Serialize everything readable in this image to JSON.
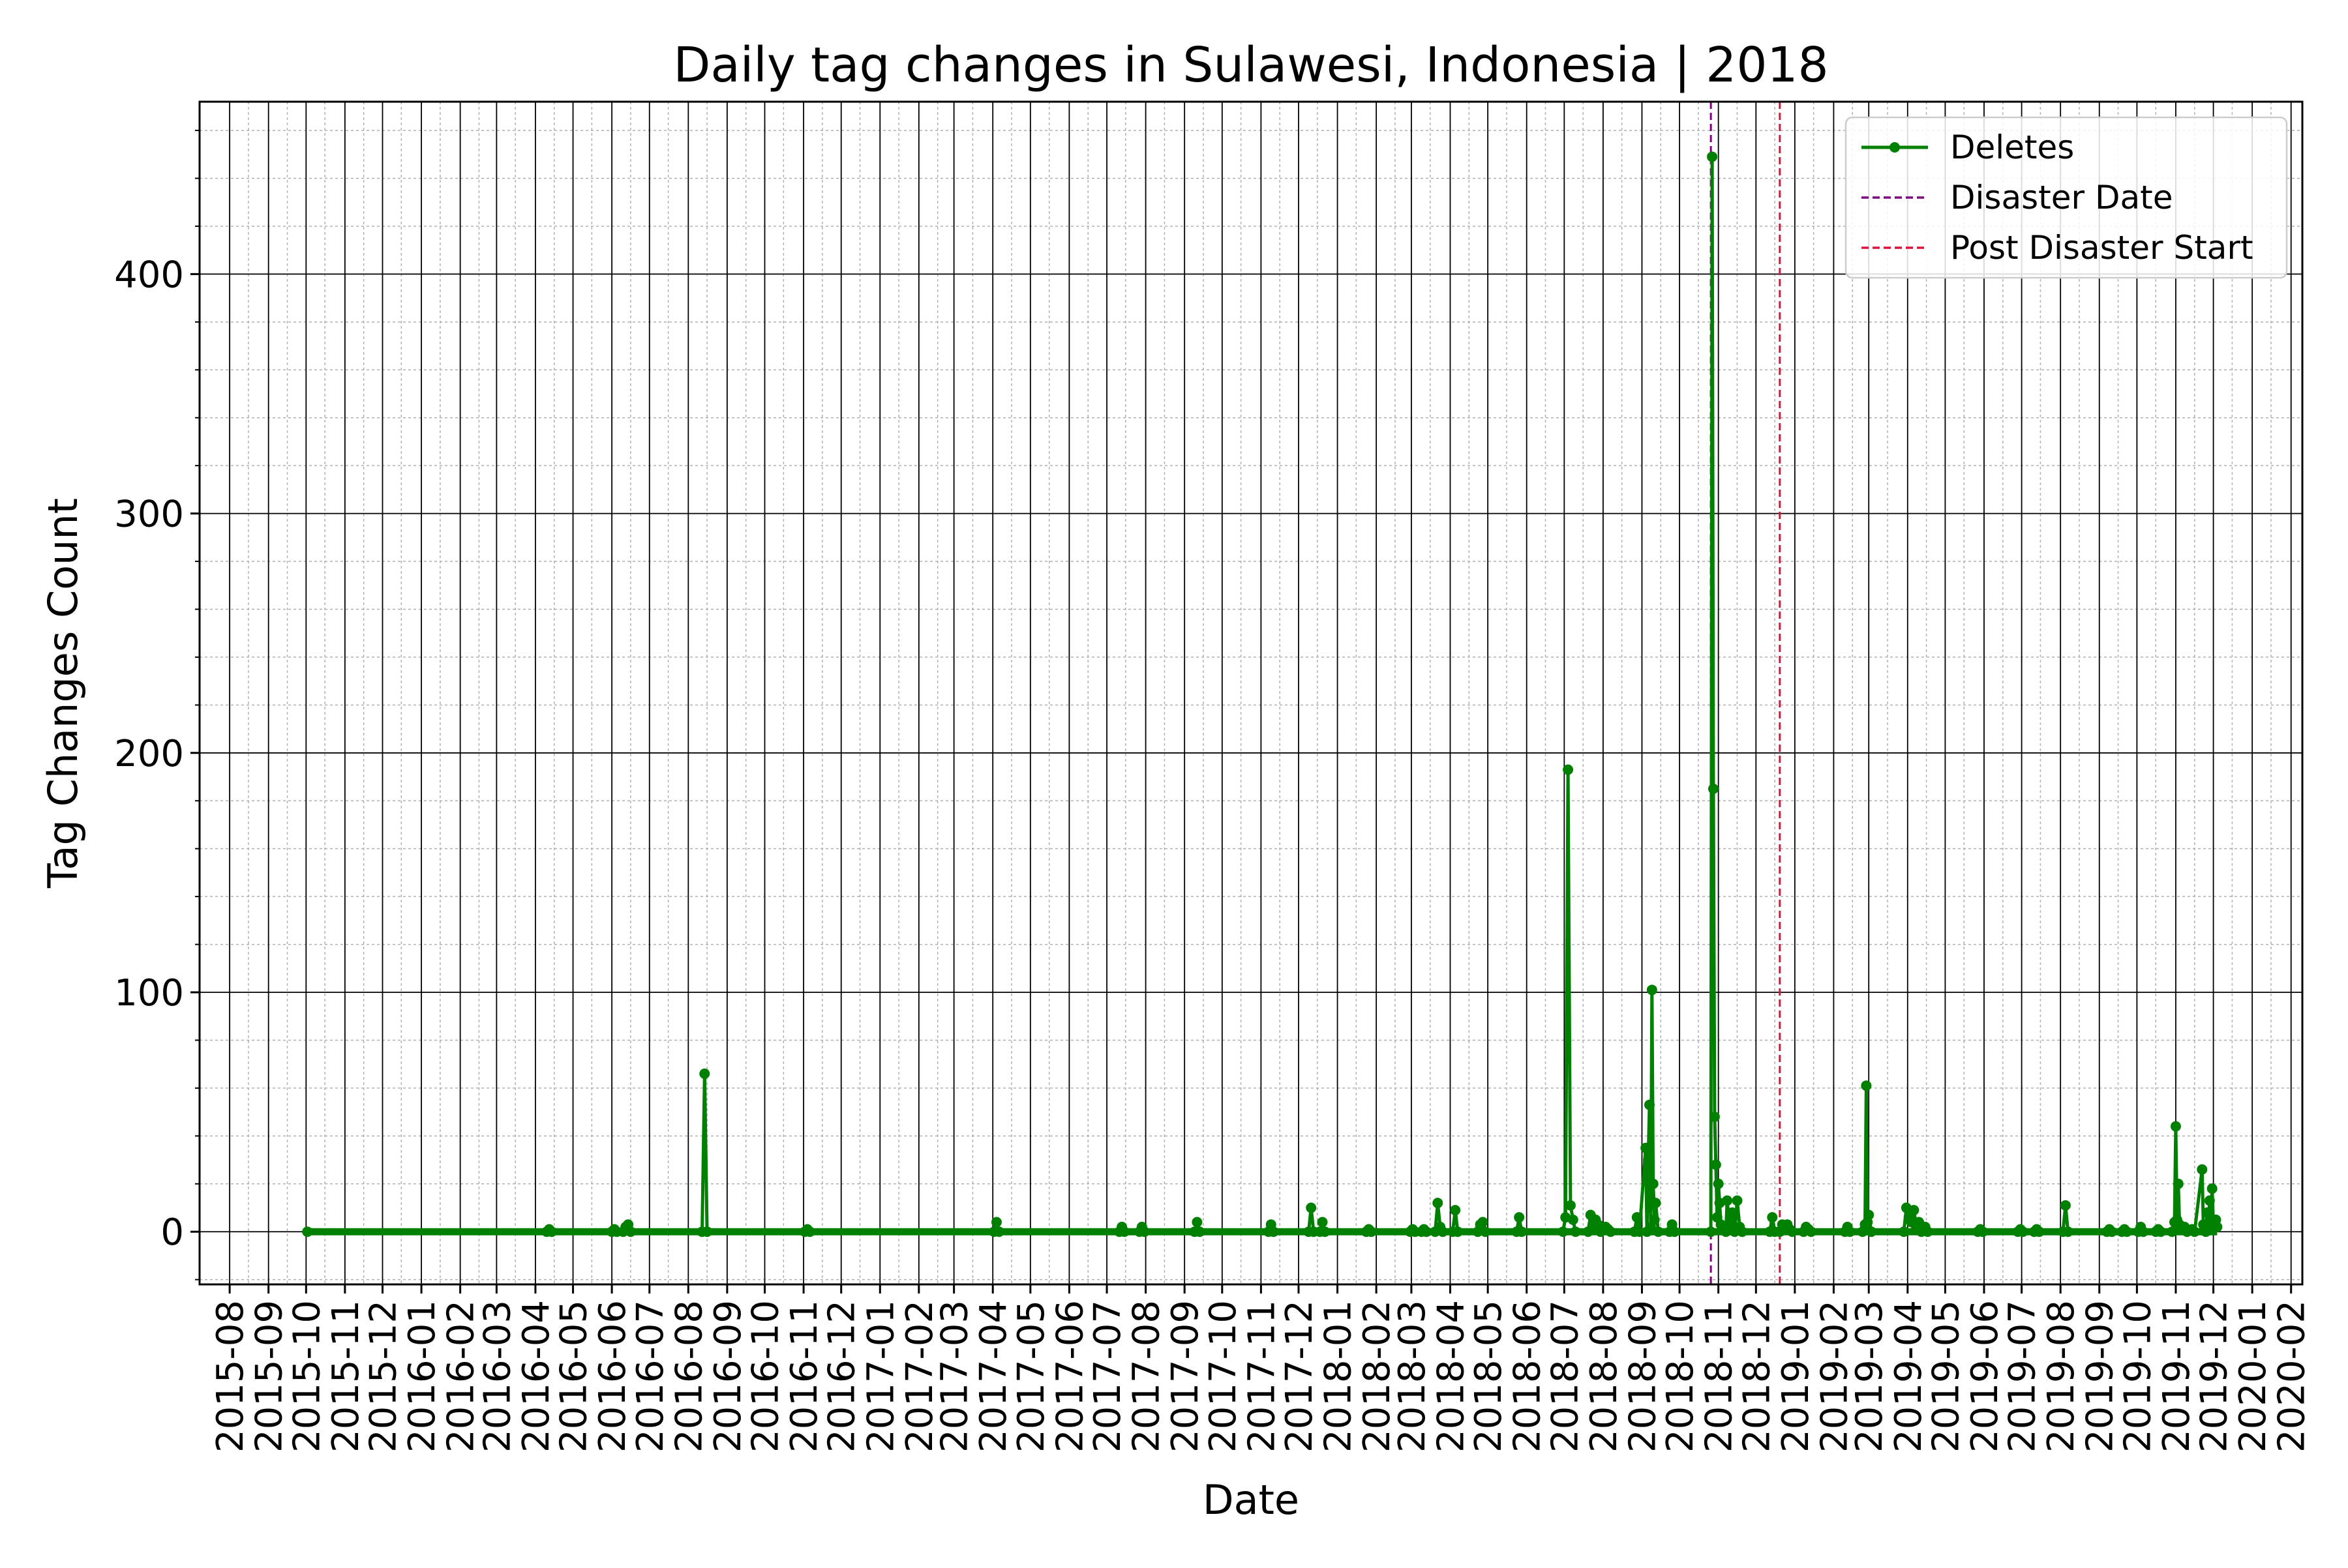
{
  "chart_data": {
    "type": "line",
    "title": "Daily tag changes in Sulawesi, Indonesia | 2018",
    "xlabel": "Date",
    "ylabel": "Tag Changes Count",
    "x_axis_type": "date",
    "xlim": [
      "2015-07-08",
      "2020-02-10"
    ],
    "ylim": [
      -22,
      472
    ],
    "x_ticks": [
      "2015-08",
      "2015-09",
      "2015-10",
      "2015-11",
      "2015-12",
      "2016-01",
      "2016-02",
      "2016-03",
      "2016-04",
      "2016-05",
      "2016-06",
      "2016-07",
      "2016-08",
      "2016-09",
      "2016-10",
      "2016-11",
      "2016-12",
      "2017-01",
      "2017-02",
      "2017-03",
      "2017-04",
      "2017-05",
      "2017-06",
      "2017-07",
      "2017-08",
      "2017-09",
      "2017-10",
      "2017-11",
      "2017-12",
      "2018-01",
      "2018-02",
      "2018-03",
      "2018-04",
      "2018-05",
      "2018-06",
      "2018-07",
      "2018-08",
      "2018-09",
      "2018-10",
      "2018-11",
      "2018-12",
      "2019-01",
      "2019-02",
      "2019-03",
      "2019-04",
      "2019-05",
      "2019-06",
      "2019-07",
      "2019-08",
      "2019-09",
      "2019-10",
      "2019-11",
      "2019-12",
      "2020-01",
      "2020-02"
    ],
    "y_ticks": [
      0,
      100,
      200,
      300,
      400
    ],
    "grid": "major and minor",
    "legend_position": "top-right",
    "series": [
      {
        "name": "Deletes",
        "color": "#008000",
        "marker": "circle",
        "points": [
          {
            "x": "2015-10-02",
            "y": 0
          },
          {
            "x": "2016-04-10",
            "y": 0
          },
          {
            "x": "2016-04-12",
            "y": 1
          },
          {
            "x": "2016-04-14",
            "y": 0
          },
          {
            "x": "2016-06-01",
            "y": 0
          },
          {
            "x": "2016-06-03",
            "y": 1
          },
          {
            "x": "2016-06-05",
            "y": 0
          },
          {
            "x": "2016-06-10",
            "y": 0
          },
          {
            "x": "2016-06-12",
            "y": 2
          },
          {
            "x": "2016-06-14",
            "y": 3
          },
          {
            "x": "2016-06-16",
            "y": 0
          },
          {
            "x": "2016-08-12",
            "y": 0
          },
          {
            "x": "2016-08-14",
            "y": 66
          },
          {
            "x": "2016-08-16",
            "y": 0
          },
          {
            "x": "2016-11-02",
            "y": 0
          },
          {
            "x": "2016-11-04",
            "y": 1
          },
          {
            "x": "2016-11-06",
            "y": 0
          },
          {
            "x": "2017-04-02",
            "y": 0
          },
          {
            "x": "2017-04-04",
            "y": 4
          },
          {
            "x": "2017-04-06",
            "y": 0
          },
          {
            "x": "2017-07-11",
            "y": 0
          },
          {
            "x": "2017-07-13",
            "y": 2
          },
          {
            "x": "2017-07-15",
            "y": 0
          },
          {
            "x": "2017-07-27",
            "y": 0
          },
          {
            "x": "2017-07-29",
            "y": 2
          },
          {
            "x": "2017-07-31",
            "y": 0
          },
          {
            "x": "2017-09-09",
            "y": 0
          },
          {
            "x": "2017-09-11",
            "y": 4
          },
          {
            "x": "2017-09-13",
            "y": 0
          },
          {
            "x": "2017-11-07",
            "y": 0
          },
          {
            "x": "2017-11-09",
            "y": 3
          },
          {
            "x": "2017-11-11",
            "y": 0
          },
          {
            "x": "2017-12-09",
            "y": 0
          },
          {
            "x": "2017-12-11",
            "y": 10
          },
          {
            "x": "2017-12-13",
            "y": 0
          },
          {
            "x": "2017-12-18",
            "y": 0
          },
          {
            "x": "2017-12-20",
            "y": 4
          },
          {
            "x": "2017-12-22",
            "y": 0
          },
          {
            "x": "2018-01-24",
            "y": 0
          },
          {
            "x": "2018-01-26",
            "y": 1
          },
          {
            "x": "2018-01-28",
            "y": 0
          },
          {
            "x": "2018-02-28",
            "y": 0
          },
          {
            "x": "2018-03-02",
            "y": 1
          },
          {
            "x": "2018-03-04",
            "y": 0
          },
          {
            "x": "2018-03-09",
            "y": 0
          },
          {
            "x": "2018-03-11",
            "y": 1
          },
          {
            "x": "2018-03-13",
            "y": 0
          },
          {
            "x": "2018-03-20",
            "y": 0
          },
          {
            "x": "2018-03-22",
            "y": 12
          },
          {
            "x": "2018-03-24",
            "y": 2
          },
          {
            "x": "2018-03-26",
            "y": 0
          },
          {
            "x": "2018-04-03",
            "y": 0
          },
          {
            "x": "2018-04-05",
            "y": 9
          },
          {
            "x": "2018-04-07",
            "y": 0
          },
          {
            "x": "2018-04-23",
            "y": 0
          },
          {
            "x": "2018-04-25",
            "y": 3
          },
          {
            "x": "2018-04-27",
            "y": 4
          },
          {
            "x": "2018-04-29",
            "y": 0
          },
          {
            "x": "2018-05-24",
            "y": 0
          },
          {
            "x": "2018-05-26",
            "y": 6
          },
          {
            "x": "2018-05-28",
            "y": 0
          },
          {
            "x": "2018-06-30",
            "y": 0
          },
          {
            "x": "2018-07-02",
            "y": 6
          },
          {
            "x": "2018-07-04",
            "y": 193
          },
          {
            "x": "2018-07-06",
            "y": 11
          },
          {
            "x": "2018-07-08",
            "y": 5
          },
          {
            "x": "2018-07-10",
            "y": 0
          },
          {
            "x": "2018-07-20",
            "y": 0
          },
          {
            "x": "2018-07-22",
            "y": 7
          },
          {
            "x": "2018-07-24",
            "y": 2
          },
          {
            "x": "2018-07-26",
            "y": 5
          },
          {
            "x": "2018-07-28",
            "y": 3
          },
          {
            "x": "2018-07-30",
            "y": 0
          },
          {
            "x": "2018-08-03",
            "y": 2
          },
          {
            "x": "2018-08-05",
            "y": 1
          },
          {
            "x": "2018-08-07",
            "y": 0
          },
          {
            "x": "2018-08-26",
            "y": 0
          },
          {
            "x": "2018-08-28",
            "y": 6
          },
          {
            "x": "2018-08-30",
            "y": 0
          },
          {
            "x": "2018-09-04",
            "y": 35
          },
          {
            "x": "2018-09-05",
            "y": 0
          },
          {
            "x": "2018-09-06",
            "y": 30
          },
          {
            "x": "2018-09-07",
            "y": 53
          },
          {
            "x": "2018-09-08",
            "y": 2
          },
          {
            "x": "2018-09-09",
            "y": 101
          },
          {
            "x": "2018-09-10",
            "y": 20
          },
          {
            "x": "2018-09-11",
            "y": 5
          },
          {
            "x": "2018-09-12",
            "y": 12
          },
          {
            "x": "2018-09-14",
            "y": 0
          },
          {
            "x": "2018-09-23",
            "y": 0
          },
          {
            "x": "2018-09-25",
            "y": 3
          },
          {
            "x": "2018-09-27",
            "y": 0
          },
          {
            "x": "2018-10-26",
            "y": 0
          },
          {
            "x": "2018-10-27",
            "y": 449
          },
          {
            "x": "2018-10-28",
            "y": 185
          },
          {
            "x": "2018-10-29",
            "y": 48
          },
          {
            "x": "2018-10-30",
            "y": 28
          },
          {
            "x": "2018-10-31",
            "y": 6
          },
          {
            "x": "2018-11-01",
            "y": 20
          },
          {
            "x": "2018-11-02",
            "y": 12
          },
          {
            "x": "2018-11-03",
            "y": 3
          },
          {
            "x": "2018-11-05",
            "y": 2
          },
          {
            "x": "2018-11-07",
            "y": 0
          },
          {
            "x": "2018-11-08",
            "y": 13
          },
          {
            "x": "2018-11-10",
            "y": 3
          },
          {
            "x": "2018-11-12",
            "y": 8
          },
          {
            "x": "2018-11-14",
            "y": 0
          },
          {
            "x": "2018-11-16",
            "y": 13
          },
          {
            "x": "2018-11-18",
            "y": 2
          },
          {
            "x": "2018-11-20",
            "y": 0
          },
          {
            "x": "2018-12-12",
            "y": 0
          },
          {
            "x": "2018-12-14",
            "y": 6
          },
          {
            "x": "2018-12-16",
            "y": 0
          },
          {
            "x": "2018-12-20",
            "y": 0
          },
          {
            "x": "2018-12-22",
            "y": 3
          },
          {
            "x": "2018-12-24",
            "y": 2
          },
          {
            "x": "2018-12-26",
            "y": 3
          },
          {
            "x": "2018-12-28",
            "y": 1
          },
          {
            "x": "2018-12-30",
            "y": 0
          },
          {
            "x": "2019-01-08",
            "y": 0
          },
          {
            "x": "2019-01-10",
            "y": 2
          },
          {
            "x": "2019-01-12",
            "y": 1
          },
          {
            "x": "2019-01-14",
            "y": 0
          },
          {
            "x": "2019-02-10",
            "y": 0
          },
          {
            "x": "2019-02-12",
            "y": 2
          },
          {
            "x": "2019-02-14",
            "y": 0
          },
          {
            "x": "2019-02-24",
            "y": 0
          },
          {
            "x": "2019-02-26",
            "y": 3
          },
          {
            "x": "2019-02-27",
            "y": 61
          },
          {
            "x": "2019-02-28",
            "y": 4
          },
          {
            "x": "2019-03-01",
            "y": 7
          },
          {
            "x": "2019-03-03",
            "y": 0
          },
          {
            "x": "2019-03-29",
            "y": 0
          },
          {
            "x": "2019-03-31",
            "y": 10
          },
          {
            "x": "2019-04-02",
            "y": 6
          },
          {
            "x": "2019-04-04",
            "y": 4
          },
          {
            "x": "2019-04-06",
            "y": 9
          },
          {
            "x": "2019-04-08",
            "y": 2
          },
          {
            "x": "2019-04-10",
            "y": 4
          },
          {
            "x": "2019-04-12",
            "y": 0
          },
          {
            "x": "2019-04-15",
            "y": 2
          },
          {
            "x": "2019-04-17",
            "y": 0
          },
          {
            "x": "2019-05-27",
            "y": 0
          },
          {
            "x": "2019-05-29",
            "y": 1
          },
          {
            "x": "2019-05-31",
            "y": 0
          },
          {
            "x": "2019-06-28",
            "y": 0
          },
          {
            "x": "2019-06-30",
            "y": 1
          },
          {
            "x": "2019-07-02",
            "y": 0
          },
          {
            "x": "2019-07-11",
            "y": 0
          },
          {
            "x": "2019-07-13",
            "y": 1
          },
          {
            "x": "2019-07-15",
            "y": 0
          },
          {
            "x": "2019-08-03",
            "y": 0
          },
          {
            "x": "2019-08-05",
            "y": 11
          },
          {
            "x": "2019-08-07",
            "y": 0
          },
          {
            "x": "2019-09-07",
            "y": 0
          },
          {
            "x": "2019-09-09",
            "y": 1
          },
          {
            "x": "2019-09-11",
            "y": 0
          },
          {
            "x": "2019-09-19",
            "y": 0
          },
          {
            "x": "2019-09-21",
            "y": 1
          },
          {
            "x": "2019-09-23",
            "y": 0
          },
          {
            "x": "2019-10-02",
            "y": 0
          },
          {
            "x": "2019-10-04",
            "y": 2
          },
          {
            "x": "2019-10-06",
            "y": 0
          },
          {
            "x": "2019-10-16",
            "y": 0
          },
          {
            "x": "2019-10-18",
            "y": 1
          },
          {
            "x": "2019-10-20",
            "y": 0
          },
          {
            "x": "2019-10-29",
            "y": 0
          },
          {
            "x": "2019-10-31",
            "y": 4
          },
          {
            "x": "2019-11-01",
            "y": 44
          },
          {
            "x": "2019-11-02",
            "y": 5
          },
          {
            "x": "2019-11-03",
            "y": 20
          },
          {
            "x": "2019-11-04",
            "y": 3
          },
          {
            "x": "2019-11-06",
            "y": 1
          },
          {
            "x": "2019-11-08",
            "y": 2
          },
          {
            "x": "2019-11-10",
            "y": 0
          },
          {
            "x": "2019-11-14",
            "y": 1
          },
          {
            "x": "2019-11-16",
            "y": 0
          },
          {
            "x": "2019-11-22",
            "y": 26
          },
          {
            "x": "2019-11-23",
            "y": 3
          },
          {
            "x": "2019-11-24",
            "y": 2
          },
          {
            "x": "2019-11-25",
            "y": 0
          },
          {
            "x": "2019-11-26",
            "y": 8
          },
          {
            "x": "2019-11-27",
            "y": 2
          },
          {
            "x": "2019-11-28",
            "y": 13
          },
          {
            "x": "2019-11-29",
            "y": 4
          },
          {
            "x": "2019-11-30",
            "y": 18
          },
          {
            "x": "2019-12-01",
            "y": 3
          },
          {
            "x": "2019-12-02",
            "y": 2
          },
          {
            "x": "2019-12-03",
            "y": 5
          },
          {
            "x": "2019-12-04",
            "y": 2
          }
        ]
      }
    ],
    "reference_lines": [
      {
        "name": "Disaster Date",
        "x": "2018-10-26",
        "color": "#800080",
        "style": "dashed"
      },
      {
        "name": "Post Disaster Start",
        "x": "2018-12-20",
        "color": "#DC143C",
        "style": "dashed"
      }
    ]
  }
}
